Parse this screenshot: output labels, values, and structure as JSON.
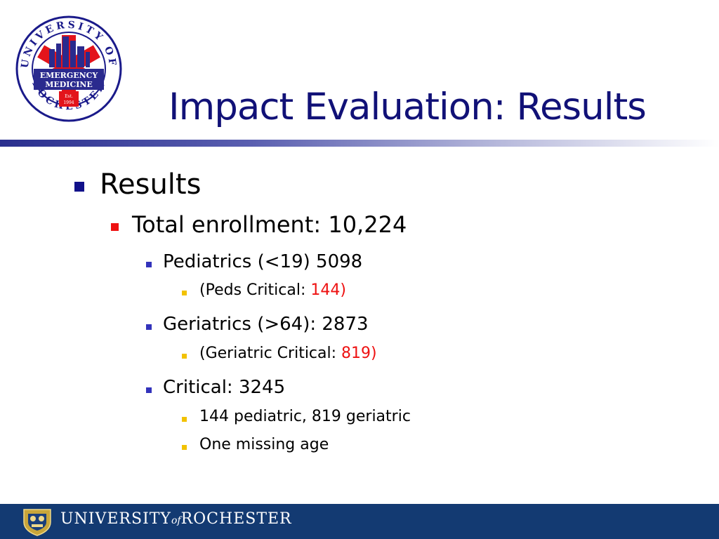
{
  "logo": {
    "icon": "emergency-medicine-seal-icon",
    "ring_text": "UNIVERSITY OF ROCHESTER",
    "band_line1": "EMERGENCY",
    "band_line2": "MEDICINE",
    "est_label": "Est.",
    "est_year": "1994"
  },
  "slide": {
    "title": "Impact Evaluation: Results",
    "items": [
      {
        "level": 1,
        "text": "Results",
        "bullet_color": "#11118a"
      },
      {
        "level": 2,
        "text": "Total enrollment: 10,224",
        "bullet_color": "#ee1111"
      },
      {
        "level": 3,
        "text": "Pediatrics (<19) 5098",
        "bullet_color": "#3333bb"
      },
      {
        "level": 4,
        "text": "(Peds Critical: ",
        "highlight": "144)",
        "highlight_color": "#ee1111",
        "bullet_color": "#f2c200"
      },
      {
        "level": 3,
        "text": "Geriatrics (>64): 2873",
        "bullet_color": "#3333bb"
      },
      {
        "level": 4,
        "text": "(Geriatric Critical: ",
        "highlight": "819)",
        "highlight_color": "#ee1111",
        "bullet_color": "#f2c200"
      },
      {
        "level": 3,
        "text": "Critical: 3245",
        "bullet_color": "#3333bb"
      },
      {
        "level": 4,
        "text": "144 pediatric, 819 geriatric",
        "bullet_color": "#f2c200"
      },
      {
        "level": 4,
        "text": "One missing age",
        "bullet_color": "#f2c200"
      }
    ]
  },
  "footer": {
    "bg_color": "#133a72",
    "crest_icon": "university-crest-icon",
    "brand_left": "UNIVERSITY",
    "brand_of": "of",
    "brand_right": "ROCHESTER"
  }
}
